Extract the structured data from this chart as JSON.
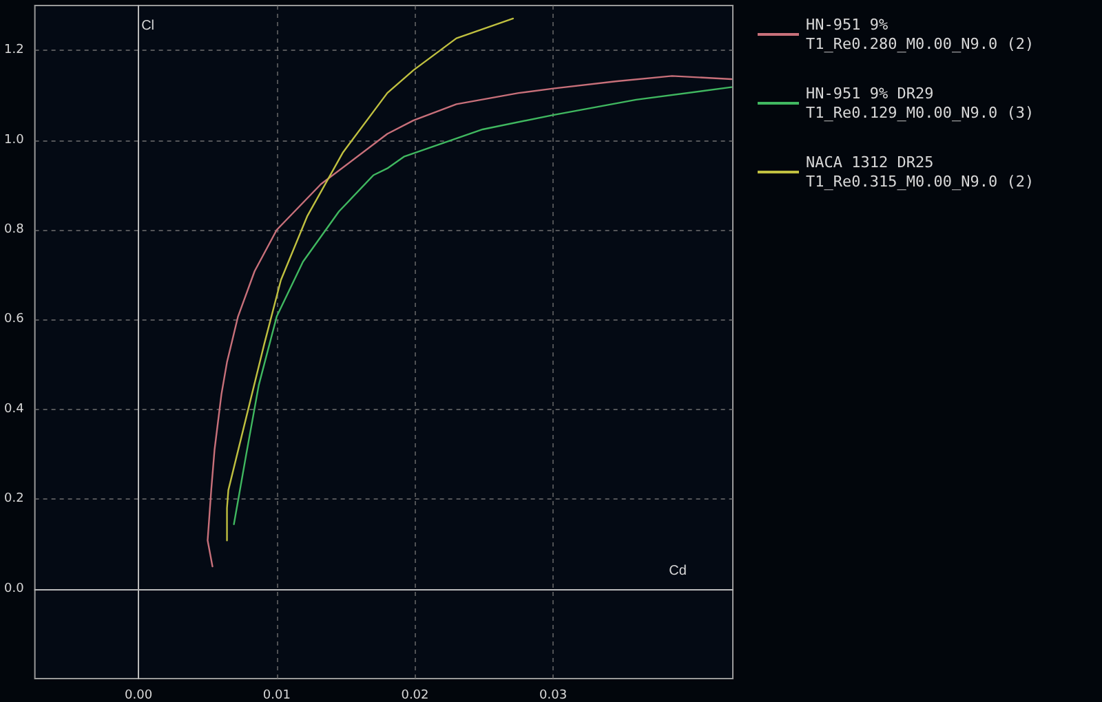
{
  "chart_data": {
    "type": "line",
    "xlabel": "Cd",
    "ylabel": "Cl",
    "xlim": [
      -0.0075,
      0.043
    ],
    "ylim": [
      -0.2,
      1.3
    ],
    "xticks": [
      {
        "value": 0,
        "label": "0.00"
      },
      {
        "value": 0.01,
        "label": "0.01"
      },
      {
        "value": 0.02,
        "label": "0.02"
      },
      {
        "value": 0.03,
        "label": "0.03"
      }
    ],
    "yticks": [
      {
        "value": 0,
        "label": "0.0"
      },
      {
        "value": 0.2,
        "label": "0.2"
      },
      {
        "value": 0.4,
        "label": "0.4"
      },
      {
        "value": 0.6,
        "label": "0.6"
      },
      {
        "value": 0.8,
        "label": "0.8"
      },
      {
        "value": 1.0,
        "label": "1.0"
      },
      {
        "value": 1.2,
        "label": "1.2"
      }
    ],
    "grid": true,
    "legend": "top right",
    "marker": "none",
    "line_style": "solid",
    "series": [
      {
        "name": "HN-951 9%\nT1_Re0.280_M0.00_N9.0 (2)",
        "color": "#c8707a",
        "x": [
          0.00535,
          0.005,
          0.00526,
          0.0055,
          0.006,
          0.0064,
          0.0072,
          0.0084,
          0.01,
          0.0132,
          0.018,
          0.0199,
          0.023,
          0.0275,
          0.03,
          0.0345,
          0.0386,
          0.0429
        ],
        "values": [
          0.05,
          0.108,
          0.22,
          0.31,
          0.434,
          0.505,
          0.607,
          0.708,
          0.8,
          0.902,
          1.014,
          1.044,
          1.08,
          1.105,
          1.115,
          1.131,
          1.143,
          1.136
        ]
      },
      {
        "name": "HN-951 9% DR29\nT1_Re0.129_M0.00_N9.0 (3)",
        "color": "#40b860",
        "x": [
          0.0069,
          0.0078,
          0.0087,
          0.01,
          0.0119,
          0.0145,
          0.017,
          0.018,
          0.0192,
          0.0249,
          0.03,
          0.036,
          0.0429
        ],
        "values": [
          0.144,
          0.301,
          0.454,
          0.607,
          0.729,
          0.841,
          0.922,
          0.937,
          0.963,
          1.024,
          1.056,
          1.09,
          1.118
        ]
      },
      {
        "name": "NACA 1312 DR25\nT1_Re0.315_M0.00_N9.0 (2)",
        "color": "#c0c040",
        "x": [
          0.0064,
          0.0064,
          0.0065,
          0.0078,
          0.0091,
          0.0103,
          0.0122,
          0.0148,
          0.018,
          0.0199,
          0.023,
          0.0271
        ],
        "values": [
          0.108,
          0.18,
          0.22,
          0.383,
          0.546,
          0.688,
          0.83,
          0.973,
          1.105,
          1.156,
          1.227,
          1.271
        ]
      }
    ]
  }
}
